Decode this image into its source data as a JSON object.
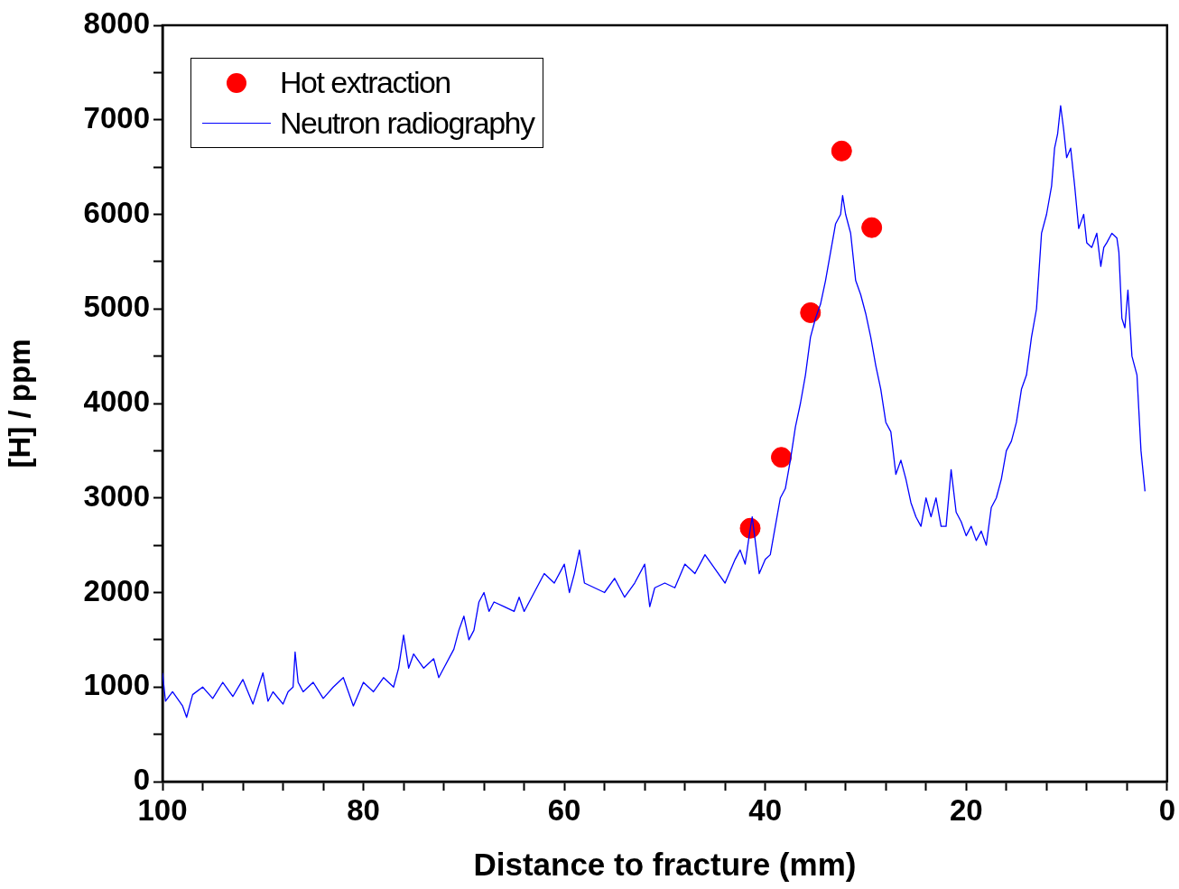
{
  "chart_data": {
    "type": "line",
    "xlabel": "Distance to fracture (mm)",
    "ylabel": "[H] / ppm",
    "xlim": [
      100,
      0
    ],
    "ylim": [
      0,
      8000
    ],
    "xticks": [
      100,
      {
        "value": 96,
        "label": null
      },
      {
        "value": 92,
        "label": null
      },
      {
        "value": 88,
        "label": null
      },
      {
        "value": 84,
        "label": null
      },
      80,
      {
        "value": 76,
        "label": null
      },
      {
        "value": 72,
        "label": null
      },
      {
        "value": 68,
        "label": null
      },
      {
        "value": 64,
        "label": null
      },
      60,
      {
        "value": 56,
        "label": null
      },
      {
        "value": 52,
        "label": null
      },
      {
        "value": 48,
        "label": null
      },
      {
        "value": 44,
        "label": null
      },
      40,
      {
        "value": 36,
        "label": null
      },
      {
        "value": 32,
        "label": null
      },
      {
        "value": 28,
        "label": null
      },
      {
        "value": 24,
        "label": null
      },
      20,
      {
        "value": 16,
        "label": null
      },
      {
        "value": 12,
        "label": null
      },
      {
        "value": 8,
        "label": null
      },
      {
        "value": 4,
        "label": null
      },
      0
    ],
    "yticks": [
      0,
      {
        "value": 500,
        "label": null
      },
      1000,
      {
        "value": 1500,
        "label": null
      },
      2000,
      {
        "value": 2500,
        "label": null
      },
      3000,
      {
        "value": 3500,
        "label": null
      },
      4000,
      {
        "value": 4500,
        "label": null
      },
      5000,
      {
        "value": 5500,
        "label": null
      },
      6000,
      {
        "value": 6500,
        "label": null
      },
      7000,
      {
        "value": 7500,
        "label": null
      },
      8000
    ],
    "grid": false,
    "legend": "top left",
    "series": [
      {
        "name": "Hot extraction",
        "type": "scatter",
        "marker": "circle",
        "color": "#ff0000",
        "x": [
          41.5,
          38.4,
          35.5,
          32.4,
          29.4
        ],
        "values": [
          2680,
          3430,
          4960,
          6670,
          5860
        ]
      },
      {
        "name": "Neutron radiography",
        "marker": "none",
        "color": "#0000ff",
        "x": [
          100,
          99.7,
          99,
          98,
          97.6,
          97,
          96,
          95,
          94,
          93,
          92,
          91,
          90,
          89.5,
          89,
          88,
          87.5,
          87,
          86.8,
          86.5,
          86,
          85,
          84,
          83,
          82,
          81,
          80,
          79,
          78,
          77,
          76.5,
          76,
          75.5,
          75,
          74,
          73,
          72.5,
          72,
          71,
          70.5,
          70,
          69.5,
          69,
          68.5,
          68,
          67.5,
          67,
          66,
          65,
          64.5,
          64,
          63,
          62,
          61,
          60,
          59.5,
          59,
          58.5,
          58,
          57,
          56,
          55,
          54,
          53,
          52,
          51.5,
          51,
          50,
          49,
          48,
          47,
          46,
          45,
          44,
          43,
          42.5,
          42,
          41.6,
          41.3,
          41,
          40.6,
          40,
          39.5,
          39,
          38.5,
          38,
          37.5,
          37,
          36.5,
          36,
          35.5,
          35,
          34.5,
          34,
          33.5,
          33,
          32.5,
          32.3,
          32,
          31.5,
          31,
          30.5,
          30,
          29.5,
          29,
          28.5,
          28,
          27.5,
          27,
          26.5,
          26,
          25.5,
          25,
          24.5,
          24,
          23.5,
          23,
          22.5,
          22,
          21.5,
          21,
          20.5,
          20,
          19.5,
          19,
          18.5,
          18,
          17.5,
          17,
          16.5,
          16,
          15.5,
          15,
          14.5,
          14,
          13.5,
          13,
          12.5,
          12,
          11.5,
          11.2,
          10.9,
          10.6,
          10.3,
          10,
          9.6,
          9.2,
          8.8,
          8.3,
          8,
          7.5,
          7,
          6.6,
          6.3,
          6,
          5.5,
          5,
          4.8,
          4.5,
          4.2,
          3.9,
          3.5,
          3,
          2.6,
          2.2
        ],
        "values": [
          1150,
          850,
          950,
          800,
          680,
          920,
          1000,
          880,
          1050,
          900,
          1080,
          820,
          1150,
          850,
          950,
          820,
          950,
          1000,
          1370,
          1050,
          950,
          1050,
          880,
          1000,
          1100,
          800,
          1050,
          950,
          1100,
          1000,
          1200,
          1550,
          1200,
          1350,
          1200,
          1300,
          1100,
          1200,
          1400,
          1600,
          1750,
          1500,
          1600,
          1900,
          2000,
          1800,
          1900,
          1850,
          1800,
          1950,
          1800,
          2000,
          2200,
          2100,
          2300,
          2000,
          2200,
          2450,
          2100,
          2050,
          2000,
          2150,
          1950,
          2100,
          2300,
          1850,
          2050,
          2100,
          2050,
          2300,
          2200,
          2400,
          2250,
          2100,
          2350,
          2450,
          2300,
          2600,
          2800,
          2550,
          2200,
          2350,
          2400,
          2700,
          3000,
          3100,
          3400,
          3750,
          4000,
          4300,
          4700,
          4900,
          5050,
          5300,
          5600,
          5900,
          6000,
          6200,
          6000,
          5800,
          5300,
          5150,
          4950,
          4700,
          4400,
          4150,
          3800,
          3700,
          3250,
          3400,
          3200,
          2950,
          2800,
          2700,
          3000,
          2800,
          3000,
          2700,
          2700,
          3300,
          2850,
          2750,
          2600,
          2700,
          2550,
          2650,
          2500,
          2900,
          3000,
          3200,
          3500,
          3600,
          3800,
          4150,
          4300,
          4700,
          5000,
          5800,
          6000,
          6300,
          6700,
          6850,
          7150,
          6900,
          6600,
          6700,
          6300,
          5850,
          6000,
          5700,
          5650,
          5800,
          5450,
          5650,
          5700,
          5800,
          5750,
          5600,
          4900,
          4800,
          5200,
          4500,
          4300,
          3500,
          3070
        ]
      }
    ]
  }
}
